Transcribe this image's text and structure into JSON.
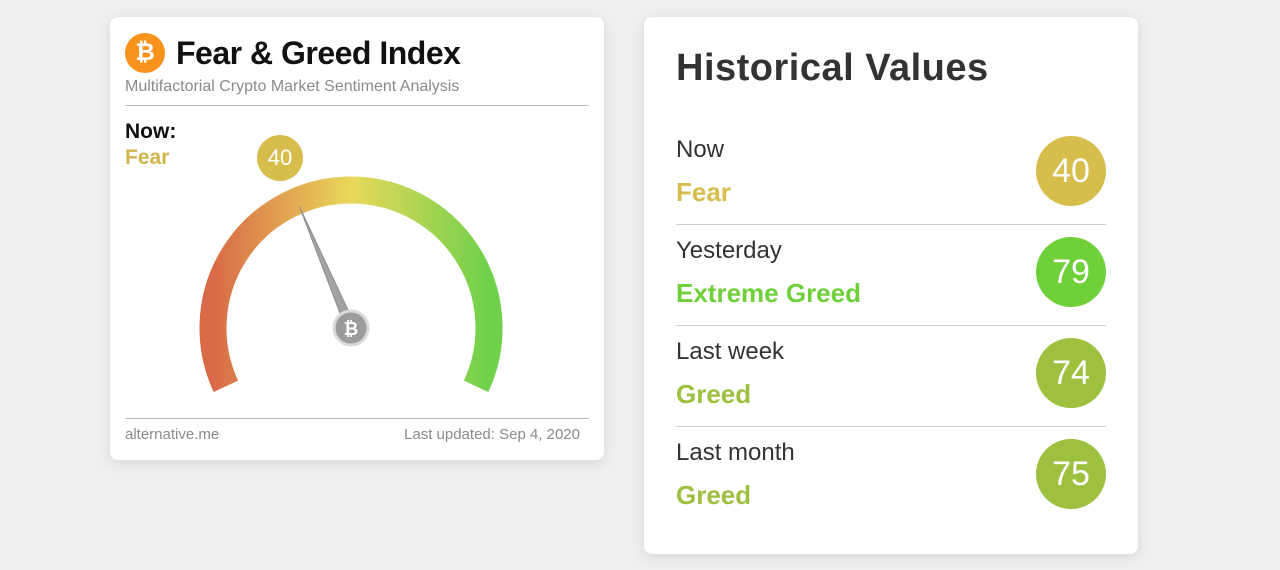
{
  "fear_greed": {
    "title": "Fear & Greed Index",
    "subtitle": "Multifactorial Crypto Market Sentiment Analysis",
    "icon": "bitcoin-icon",
    "icon_glyph": "₿",
    "now_label": "Now:",
    "classification": "Fear",
    "value": "40",
    "gauge_value": 40,
    "gauge_min": 0,
    "gauge_max": 100,
    "footer_source": "alternative.me",
    "footer_updated": "Last updated: Sep 4, 2020",
    "colors": {
      "fear": "#d6bd4c",
      "gauge_start": "#d96a47",
      "gauge_mid": "#e9d85a",
      "gauge_end": "#6fd14a",
      "needle": "#9e9e9e"
    }
  },
  "historical": {
    "title": "Historical Values",
    "rows": [
      {
        "label": "Now",
        "classification": "Fear",
        "value": "40",
        "color": "#d6bd4c"
      },
      {
        "label": "Yesterday",
        "classification": "Extreme Greed",
        "value": "79",
        "color": "#6fd03a"
      },
      {
        "label": "Last week",
        "classification": "Greed",
        "value": "74",
        "color": "#9dc03f"
      },
      {
        "label": "Last month",
        "classification": "Greed",
        "value": "75",
        "color": "#9dc03f"
      }
    ]
  }
}
